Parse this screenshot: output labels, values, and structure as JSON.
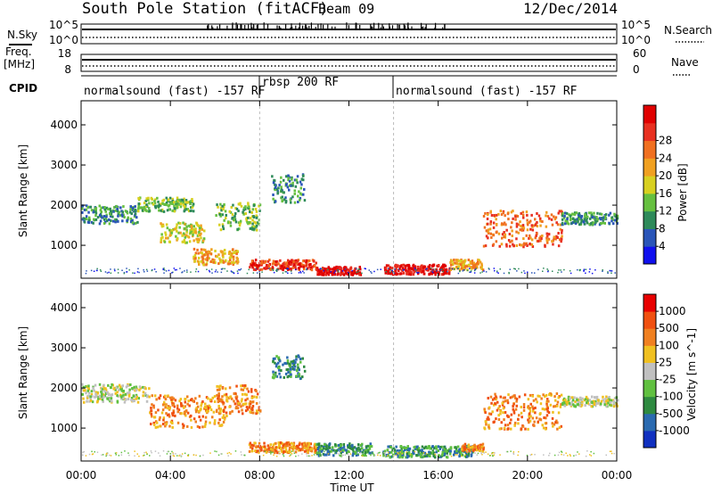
{
  "header": {
    "station": "South Pole Station (fitACF)",
    "beam": "Beam 09",
    "date": "12/Dec/2014"
  },
  "top_panels": {
    "nsky_label": "N.Sky",
    "nsearch_label": "N.Search",
    "nsky_ticks": [
      "10^5",
      "10^0"
    ],
    "nsearch_ticks": [
      "10^5",
      "10^0"
    ],
    "freq_label_1": "Freq.",
    "freq_label_2": "[MHz]",
    "freq_ticks": [
      "18",
      "8"
    ],
    "nave_label": "Nave",
    "nave_ticks": [
      "60",
      "0"
    ],
    "cpid_label": "CPID",
    "cpid_segments": [
      {
        "label": "normalsound (fast) -157 RF",
        "start": 0,
        "end": 8
      },
      {
        "label": "rbsp 200 RF",
        "start": 8,
        "end": 14
      },
      {
        "label": "normalsound (fast) -157 RF",
        "start": 14,
        "end": 24
      }
    ]
  },
  "chart_data": [
    {
      "type": "heatmap",
      "ylabel": "Slant Range [km]",
      "xlabel": "Time UT",
      "x_ticks": [
        "00:00",
        "04:00",
        "08:00",
        "12:00",
        "16:00",
        "20:00",
        "00:00"
      ],
      "y_ticks": [
        "1000",
        "2000",
        "3000",
        "4000"
      ],
      "xlim": [
        0,
        24
      ],
      "ylim": [
        180,
        4600
      ],
      "colorbar": {
        "label": "Power [dB]",
        "ticks": [
          "4",
          "8",
          "12",
          "16",
          "20",
          "24",
          "28"
        ],
        "colors": [
          "#1010ee",
          "#2a55b8",
          "#2e8a5a",
          "#66c040",
          "#d8d020",
          "#f0a020",
          "#f07020",
          "#e83020",
          "#e00000"
        ]
      },
      "echo_bands": [
        {
          "t_start": 0.0,
          "t_end": 2.5,
          "r_center": 1750,
          "r_width": 450,
          "level": 2
        },
        {
          "t_start": 2.5,
          "t_end": 5.0,
          "r_center": 2000,
          "r_width": 350,
          "level": 3
        },
        {
          "t_start": 3.5,
          "t_end": 5.5,
          "r_center": 1300,
          "r_width": 500,
          "level": 4
        },
        {
          "t_start": 5.0,
          "t_end": 7.0,
          "r_center": 700,
          "r_width": 400,
          "level": 5
        },
        {
          "t_start": 6.0,
          "t_end": 8.0,
          "r_center": 1700,
          "r_width": 700,
          "level": 3
        },
        {
          "t_start": 7.5,
          "t_end": 10.5,
          "r_center": 500,
          "r_width": 250,
          "level": 7
        },
        {
          "t_start": 8.5,
          "t_end": 10.0,
          "r_center": 2400,
          "r_width": 700,
          "level": 2
        },
        {
          "t_start": 10.5,
          "t_end": 12.5,
          "r_center": 350,
          "r_width": 200,
          "level": 8
        },
        {
          "t_start": 13.5,
          "t_end": 16.5,
          "r_center": 380,
          "r_width": 240,
          "level": 8
        },
        {
          "t_start": 16.5,
          "t_end": 18.0,
          "r_center": 500,
          "r_width": 250,
          "level": 5
        },
        {
          "t_start": 18.0,
          "t_end": 21.5,
          "r_center": 1400,
          "r_width": 900,
          "level": 6
        },
        {
          "t_start": 21.5,
          "t_end": 24.0,
          "r_center": 1650,
          "r_width": 300,
          "level": 2
        }
      ]
    },
    {
      "type": "heatmap",
      "ylabel": "Slant Range [km]",
      "xlabel": "Time UT",
      "x_ticks": [
        "00:00",
        "04:00",
        "08:00",
        "12:00",
        "16:00",
        "20:00",
        "00:00"
      ],
      "y_ticks": [
        "1000",
        "2000",
        "3000",
        "4000"
      ],
      "xlim": [
        0,
        24
      ],
      "ylim": [
        180,
        4600
      ],
      "colorbar": {
        "label": "Velocity [m s^-1]",
        "ticks": [
          "1000",
          "500",
          "100",
          "25",
          "-25",
          "-100",
          "-500",
          "-1000"
        ],
        "colors": [
          "#1030c0",
          "#2a6ab0",
          "#2e8a40",
          "#60c040",
          "#c0c0c0",
          "#f0c020",
          "#f08020",
          "#f05010",
          "#e80000"
        ]
      },
      "echo_bands": [
        {
          "t_start": 0.0,
          "t_end": 3.0,
          "r_center": 1850,
          "r_width": 450,
          "level": 4
        },
        {
          "t_start": 3.0,
          "t_end": 6.5,
          "r_center": 1400,
          "r_width": 800,
          "level": 6
        },
        {
          "t_start": 6.0,
          "t_end": 8.0,
          "r_center": 1700,
          "r_width": 700,
          "level": 6
        },
        {
          "t_start": 7.5,
          "t_end": 10.5,
          "r_center": 500,
          "r_width": 250,
          "level": 6
        },
        {
          "t_start": 8.5,
          "t_end": 10.0,
          "r_center": 2500,
          "r_width": 600,
          "level": 2
        },
        {
          "t_start": 10.5,
          "t_end": 13.0,
          "r_center": 450,
          "r_width": 300,
          "level": 2
        },
        {
          "t_start": 13.5,
          "t_end": 17.5,
          "r_center": 400,
          "r_width": 280,
          "level": 2
        },
        {
          "t_start": 17.0,
          "t_end": 18.0,
          "r_center": 500,
          "r_width": 200,
          "level": 6
        },
        {
          "t_start": 18.0,
          "t_end": 21.5,
          "r_center": 1400,
          "r_width": 900,
          "level": 6
        },
        {
          "t_start": 21.5,
          "t_end": 24.0,
          "r_center": 1650,
          "r_width": 250,
          "level": 4
        }
      ]
    }
  ]
}
